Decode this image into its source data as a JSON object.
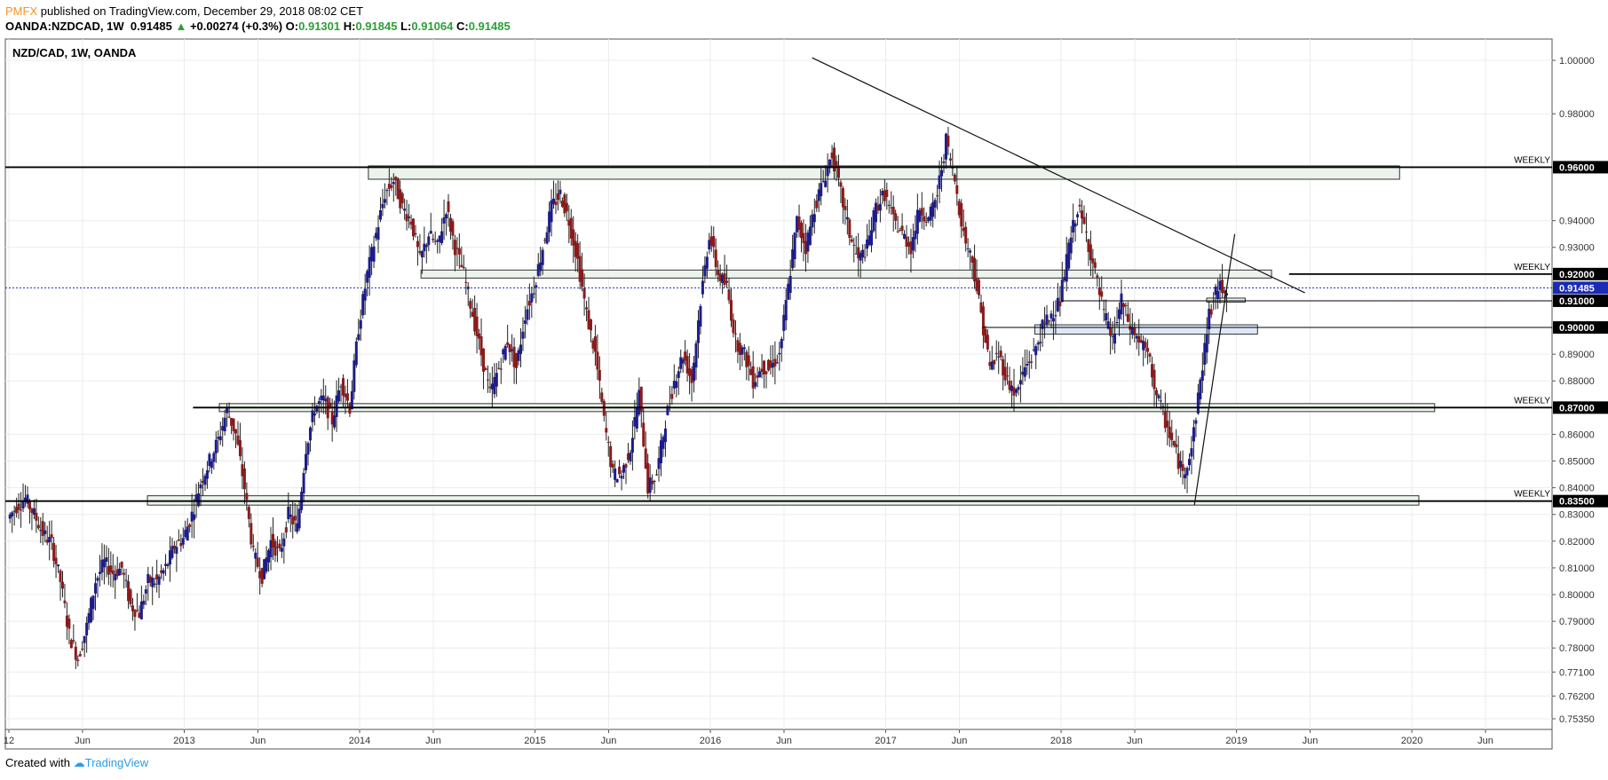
{
  "header": {
    "publisher": "PMFX",
    "published_text": "published on TradingView.com, December 29, 2018 08:02 CET",
    "symbol": "OANDA:NZDCAD, 1W",
    "last": "0.91485",
    "change": "+0.00274 (+0.3%)",
    "o_label": "O:",
    "o": "0.91301",
    "h_label": "H:",
    "h": "0.91845",
    "l_label": "L:",
    "l": "0.91064",
    "c_label": "C:",
    "c": "0.91485"
  },
  "footer": {
    "created_with": "Created with",
    "brand": "TradingView"
  },
  "colors": {
    "up": "#1c1c8c",
    "down": "#8b1b1b",
    "zone_fill": "#ecf3ec",
    "zone_fill_blue": "#dde8f6",
    "grid": "#ececec",
    "price_line": "#1b2bb5",
    "price_tag": "#1b2bb5"
  },
  "chart_data": {
    "type": "candlestick",
    "title": "NZD/CAD, 1W, OANDA",
    "ylim": [
      0.7535,
      1.004
    ],
    "y_ticks": [
      "1.00000",
      "0.98000",
      "0.94000",
      "0.93000",
      "0.89000",
      "0.88000",
      "0.86000",
      "0.85000",
      "0.84000",
      "0.83000",
      "0.82000",
      "0.81000",
      "0.80000",
      "0.79000",
      "0.78000",
      "0.77100",
      "0.76200",
      "0.75350"
    ],
    "x_labels": [
      {
        "label": "12",
        "year": 2012.0
      },
      {
        "label": "Jun",
        "year": 2012.42
      },
      {
        "label": "2013",
        "year": 2013.0
      },
      {
        "label": "Jun",
        "year": 2013.42
      },
      {
        "label": "2014",
        "year": 2014.0
      },
      {
        "label": "Jun",
        "year": 2014.42
      },
      {
        "label": "2015",
        "year": 2015.0
      },
      {
        "label": "Jun",
        "year": 2015.42
      },
      {
        "label": "2016",
        "year": 2016.0
      },
      {
        "label": "Jun",
        "year": 2016.42
      },
      {
        "label": "2017",
        "year": 2017.0
      },
      {
        "label": "Jun",
        "year": 2017.42
      },
      {
        "label": "2018",
        "year": 2018.0
      },
      {
        "label": "Jun",
        "year": 2018.42
      },
      {
        "label": "2019",
        "year": 2019.0
      },
      {
        "label": "Jun",
        "year": 2019.42
      },
      {
        "label": "2020",
        "year": 2020.0
      },
      {
        "label": "Jun",
        "year": 2020.42
      }
    ],
    "x_range": [
      2012.0,
      2020.44
    ],
    "levels": [
      {
        "price": 0.96,
        "label": "0.96000",
        "tag": "WEEKLY",
        "x_start": 2011.98
      },
      {
        "price": 0.92,
        "label": "0.92000",
        "tag": "WEEKLY",
        "x_start": 2019.3
      },
      {
        "price": 0.91,
        "label": "0.91000",
        "tag": "",
        "x_start": 2018.0
      },
      {
        "price": 0.9,
        "label": "0.90000",
        "tag": "",
        "x_start": 2017.55
      },
      {
        "price": 0.87,
        "label": "0.87000",
        "tag": "WEEKLY",
        "x_start": 2013.05
      },
      {
        "price": 0.835,
        "label": "0.83500",
        "tag": "WEEKLY",
        "x_start": 2011.98
      }
    ],
    "current_price": {
      "price": 0.91485,
      "label": "0.91485"
    },
    "zones": [
      {
        "x0": 2014.05,
        "x1": 2019.93,
        "y0": 0.9555,
        "y1": 0.9605,
        "kind": "green"
      },
      {
        "x0": 2014.35,
        "x1": 2019.2,
        "y0": 0.9185,
        "y1": 0.9215,
        "kind": "green"
      },
      {
        "x0": 2018.83,
        "x1": 2019.05,
        "y0": 0.9095,
        "y1": 0.911,
        "kind": "green"
      },
      {
        "x0": 2017.85,
        "x1": 2019.12,
        "y0": 0.8975,
        "y1": 0.901,
        "kind": "blue"
      },
      {
        "x0": 2013.2,
        "x1": 2020.13,
        "y0": 0.8685,
        "y1": 0.8715,
        "kind": "green"
      },
      {
        "x0": 2012.79,
        "x1": 2020.04,
        "y0": 0.8335,
        "y1": 0.837,
        "kind": "green"
      }
    ],
    "trendlines": [
      {
        "x0": 2016.58,
        "y0": 1.001,
        "x1": 2019.39,
        "y1": 0.913
      },
      {
        "x0": 2018.76,
        "y0": 0.8335,
        "x1": 2018.99,
        "y1": 0.935
      }
    ],
    "series_close": [
      [
        2012.0,
        0.8285
      ],
      [
        2012.05,
        0.833
      ],
      [
        2012.1,
        0.836
      ],
      [
        2012.15,
        0.83
      ],
      [
        2012.2,
        0.823
      ],
      [
        2012.25,
        0.819
      ],
      [
        2012.3,
        0.805
      ],
      [
        2012.35,
        0.785
      ],
      [
        2012.4,
        0.776
      ],
      [
        2012.45,
        0.788
      ],
      [
        2012.5,
        0.805
      ],
      [
        2012.55,
        0.812
      ],
      [
        2012.6,
        0.808
      ],
      [
        2012.65,
        0.81
      ],
      [
        2012.7,
        0.796
      ],
      [
        2012.75,
        0.793
      ],
      [
        2012.8,
        0.805
      ],
      [
        2012.85,
        0.805
      ],
      [
        2012.9,
        0.81
      ],
      [
        2012.95,
        0.818
      ],
      [
        2013.0,
        0.821
      ],
      [
        2013.05,
        0.83
      ],
      [
        2013.1,
        0.842
      ],
      [
        2013.15,
        0.85
      ],
      [
        2013.2,
        0.858
      ],
      [
        2013.25,
        0.869
      ],
      [
        2013.3,
        0.86
      ],
      [
        2013.35,
        0.84
      ],
      [
        2013.4,
        0.815
      ],
      [
        2013.45,
        0.807
      ],
      [
        2013.5,
        0.82
      ],
      [
        2013.55,
        0.815
      ],
      [
        2013.6,
        0.83
      ],
      [
        2013.65,
        0.825
      ],
      [
        2013.7,
        0.855
      ],
      [
        2013.75,
        0.87
      ],
      [
        2013.8,
        0.873
      ],
      [
        2013.85,
        0.865
      ],
      [
        2013.9,
        0.88
      ],
      [
        2013.95,
        0.87
      ],
      [
        2014.0,
        0.9
      ],
      [
        2014.05,
        0.92
      ],
      [
        2014.1,
        0.935
      ],
      [
        2014.15,
        0.95
      ],
      [
        2014.2,
        0.955
      ],
      [
        2014.25,
        0.945
      ],
      [
        2014.3,
        0.94
      ],
      [
        2014.35,
        0.925
      ],
      [
        2014.4,
        0.935
      ],
      [
        2014.45,
        0.93
      ],
      [
        2014.5,
        0.945
      ],
      [
        2014.55,
        0.93
      ],
      [
        2014.6,
        0.92
      ],
      [
        2014.65,
        0.905
      ],
      [
        2014.7,
        0.89
      ],
      [
        2014.75,
        0.875
      ],
      [
        2014.8,
        0.885
      ],
      [
        2014.85,
        0.895
      ],
      [
        2014.9,
        0.885
      ],
      [
        2014.95,
        0.905
      ],
      [
        2015.0,
        0.915
      ],
      [
        2015.05,
        0.93
      ],
      [
        2015.1,
        0.945
      ],
      [
        2015.15,
        0.95
      ],
      [
        2015.2,
        0.94
      ],
      [
        2015.25,
        0.925
      ],
      [
        2015.3,
        0.905
      ],
      [
        2015.35,
        0.89
      ],
      [
        2015.4,
        0.865
      ],
      [
        2015.45,
        0.845
      ],
      [
        2015.5,
        0.845
      ],
      [
        2015.55,
        0.855
      ],
      [
        2015.6,
        0.875
      ],
      [
        2015.65,
        0.84
      ],
      [
        2015.7,
        0.845
      ],
      [
        2015.75,
        0.865
      ],
      [
        2015.8,
        0.88
      ],
      [
        2015.85,
        0.89
      ],
      [
        2015.9,
        0.88
      ],
      [
        2015.95,
        0.91
      ],
      [
        2016.0,
        0.935
      ],
      [
        2016.05,
        0.92
      ],
      [
        2016.1,
        0.915
      ],
      [
        2016.15,
        0.895
      ],
      [
        2016.2,
        0.89
      ],
      [
        2016.25,
        0.88
      ],
      [
        2016.3,
        0.885
      ],
      [
        2016.35,
        0.885
      ],
      [
        2016.4,
        0.89
      ],
      [
        2016.45,
        0.915
      ],
      [
        2016.5,
        0.94
      ],
      [
        2016.55,
        0.93
      ],
      [
        2016.6,
        0.945
      ],
      [
        2016.65,
        0.955
      ],
      [
        2016.7,
        0.965
      ],
      [
        2016.75,
        0.95
      ],
      [
        2016.8,
        0.935
      ],
      [
        2016.85,
        0.925
      ],
      [
        2016.9,
        0.93
      ],
      [
        2016.95,
        0.945
      ],
      [
        2017.0,
        0.95
      ],
      [
        2017.05,
        0.94
      ],
      [
        2017.1,
        0.935
      ],
      [
        2017.15,
        0.93
      ],
      [
        2017.2,
        0.945
      ],
      [
        2017.25,
        0.94
      ],
      [
        2017.3,
        0.95
      ],
      [
        2017.35,
        0.97
      ],
      [
        2017.4,
        0.955
      ],
      [
        2017.45,
        0.935
      ],
      [
        2017.5,
        0.925
      ],
      [
        2017.55,
        0.905
      ],
      [
        2017.6,
        0.885
      ],
      [
        2017.65,
        0.89
      ],
      [
        2017.7,
        0.88
      ],
      [
        2017.75,
        0.875
      ],
      [
        2017.8,
        0.885
      ],
      [
        2017.85,
        0.89
      ],
      [
        2017.9,
        0.9
      ],
      [
        2017.95,
        0.905
      ],
      [
        2018.0,
        0.91
      ],
      [
        2018.05,
        0.93
      ],
      [
        2018.1,
        0.945
      ],
      [
        2018.15,
        0.935
      ],
      [
        2018.2,
        0.92
      ],
      [
        2018.25,
        0.905
      ],
      [
        2018.3,
        0.895
      ],
      [
        2018.35,
        0.91
      ],
      [
        2018.4,
        0.9
      ],
      [
        2018.45,
        0.895
      ],
      [
        2018.5,
        0.89
      ],
      [
        2018.55,
        0.875
      ],
      [
        2018.6,
        0.865
      ],
      [
        2018.65,
        0.855
      ],
      [
        2018.7,
        0.845
      ],
      [
        2018.75,
        0.855
      ],
      [
        2018.8,
        0.88
      ],
      [
        2018.85,
        0.905
      ],
      [
        2018.9,
        0.915
      ],
      [
        2018.95,
        0.91485
      ]
    ]
  }
}
